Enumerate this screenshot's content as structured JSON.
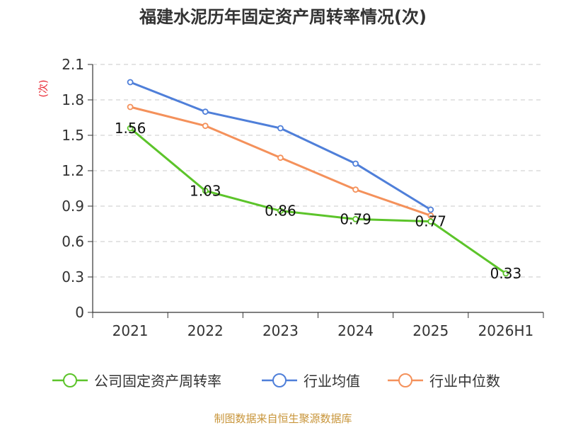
{
  "chart_data": {
    "type": "line",
    "title": "福建水泥历年固定资产周转率情况(次)",
    "ylabel": "(次)",
    "ylim": [
      0,
      2.1
    ],
    "yticks": [
      "0",
      "0.3",
      "0.6",
      "0.9",
      "1.2",
      "1.5",
      "1.8",
      "2.1"
    ],
    "categories": [
      "2021",
      "2022",
      "2023",
      "2024",
      "2025",
      "2026H1"
    ],
    "grid": true,
    "legend_position": "bottom",
    "series": [
      {
        "name": "公司固定资产周转率",
        "color": "#5cc42a",
        "values": [
          1.56,
          1.03,
          0.86,
          0.79,
          0.77,
          0.33
        ],
        "labels": [
          "1.56",
          "1.03",
          "0.86",
          "0.79",
          "0.77",
          "0.33"
        ]
      },
      {
        "name": "行业均值",
        "color": "#4f7fd9",
        "values": [
          1.95,
          1.7,
          1.56,
          1.26,
          0.87,
          null
        ]
      },
      {
        "name": "行业中位数",
        "color": "#f4915b",
        "values": [
          1.74,
          1.58,
          1.31,
          1.04,
          0.82,
          null
        ]
      }
    ],
    "source": "制图数据来自恒生聚源数据库"
  }
}
